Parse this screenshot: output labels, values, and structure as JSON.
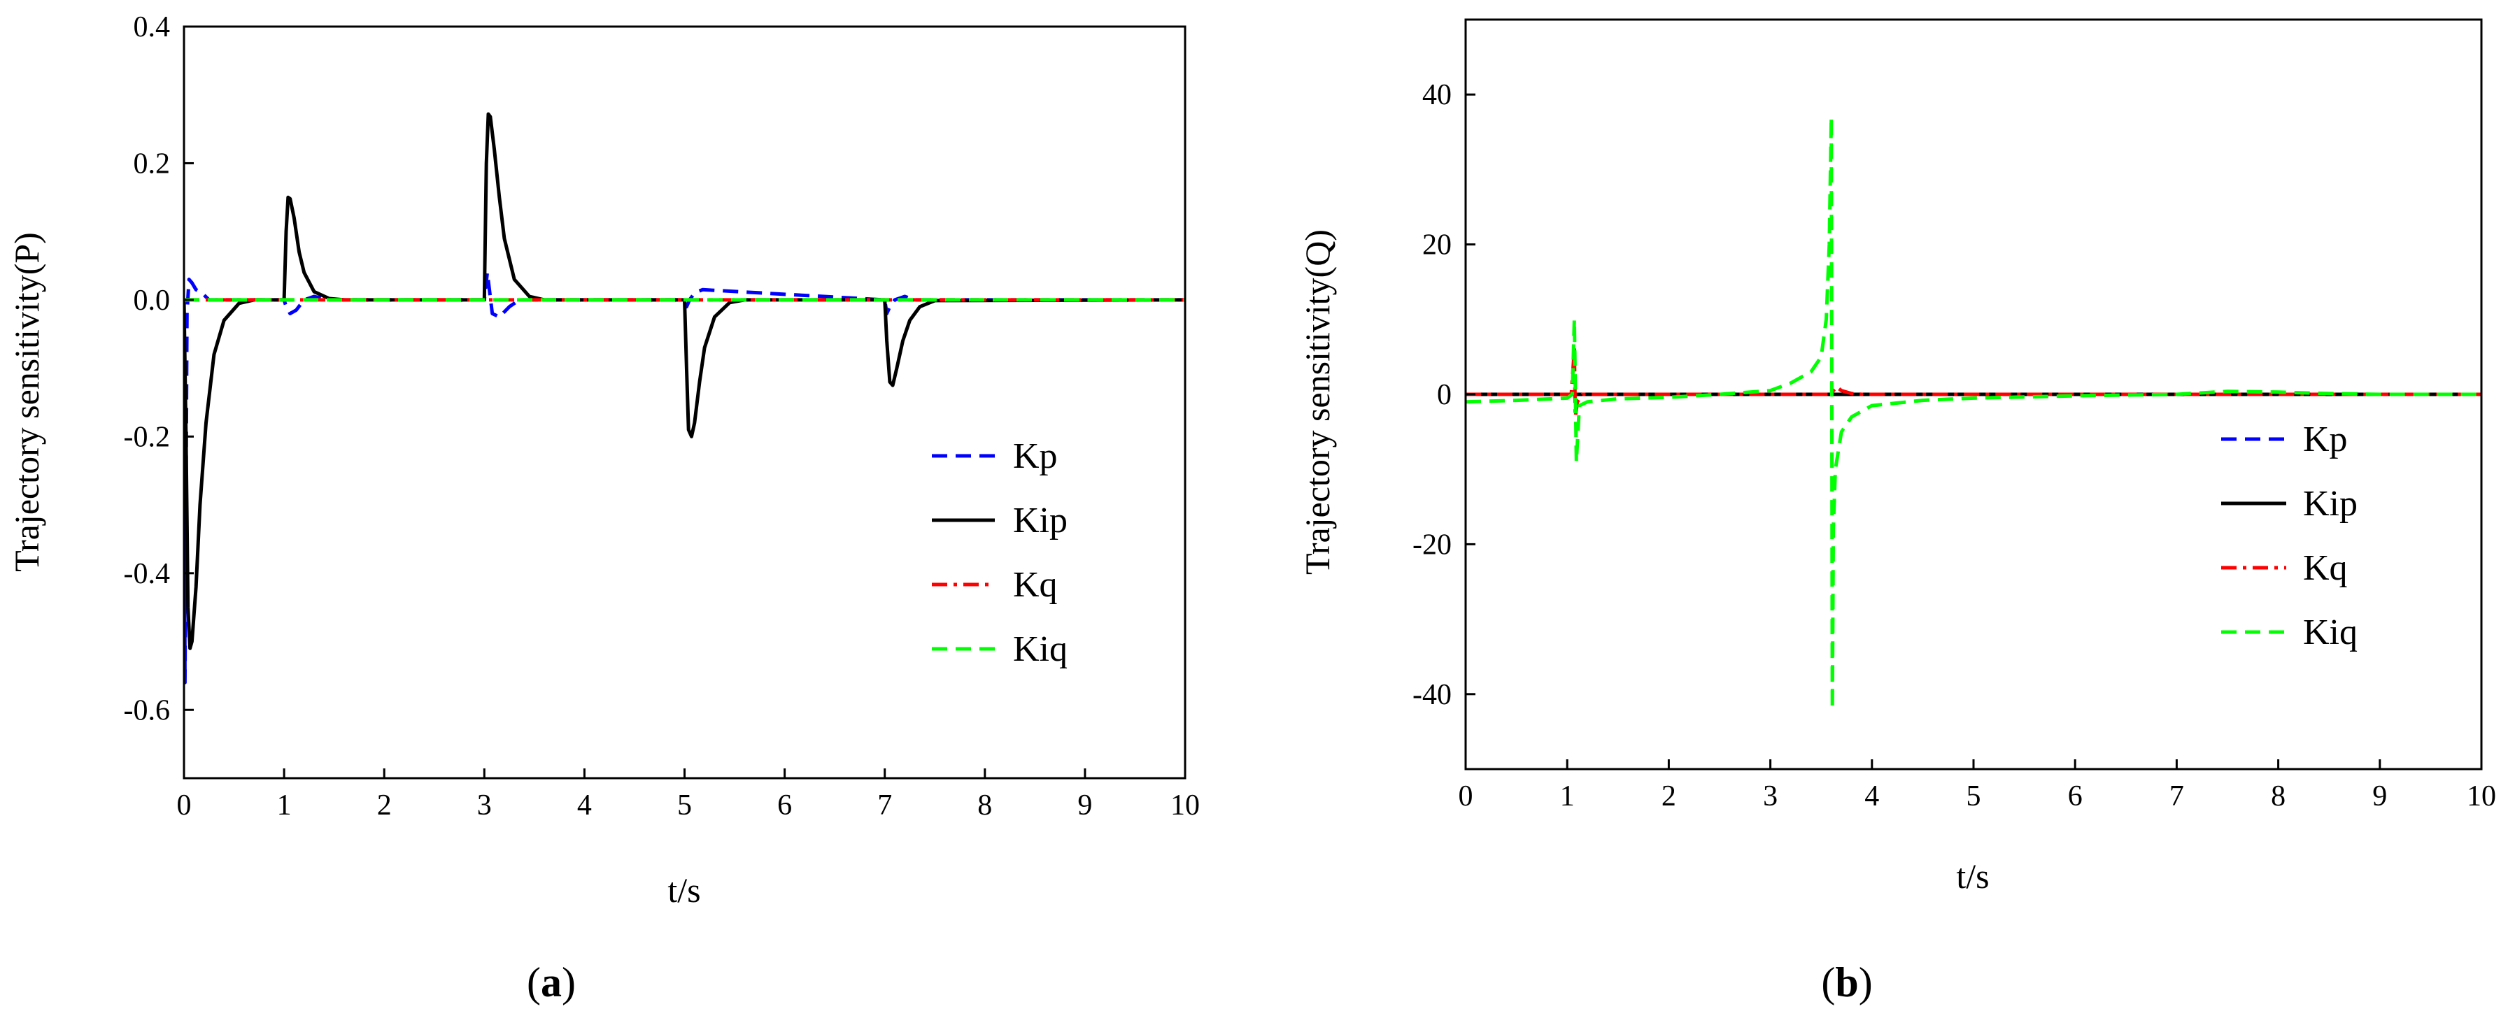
{
  "chart_data": [
    {
      "type": "line",
      "panel": "a",
      "caption_open": "(",
      "caption_letter": "a",
      "caption_close": ")",
      "xlabel": "t/s",
      "ylabel": "Trajectory sensitivity(P)",
      "xlim": [
        0,
        10
      ],
      "ylim": [
        -0.7,
        0.4
      ],
      "xticks": [
        "0",
        "1",
        "2",
        "3",
        "4",
        "5",
        "6",
        "7",
        "8",
        "9",
        "10"
      ],
      "yticks": [
        "-0.6",
        "-0.4",
        "-0.2",
        "0.0",
        "0.2",
        "0.4"
      ],
      "ytick_values": [
        -0.6,
        -0.4,
        -0.2,
        0.0,
        0.2,
        0.4
      ],
      "legend_position": "center-right",
      "series": [
        {
          "name": "Kp",
          "color": "#0000ff",
          "style": "dashed",
          "x": [
            0,
            0.01,
            0.03,
            0.05,
            0.08,
            0.12,
            0.18,
            0.25,
            0.35,
            1.0,
            1.02,
            1.06,
            1.12,
            1.2,
            1.3,
            1.45,
            3.0,
            3.03,
            3.08,
            3.15,
            3.25,
            3.35,
            3.5,
            5.0,
            5.02,
            5.05,
            5.1,
            5.18,
            7.0,
            7.02,
            7.05,
            7.1,
            7.2,
            7.3,
            10
          ],
          "values": [
            0,
            -0.56,
            -0.02,
            0.03,
            0.025,
            0.015,
            0.01,
            0.0,
            0.0,
            0.0,
            -0.01,
            -0.02,
            -0.015,
            0.0,
            0.005,
            0.0,
            0.0,
            0.04,
            -0.02,
            -0.025,
            -0.01,
            0.0,
            0.0,
            0.0,
            -0.01,
            0.0,
            0.01,
            0.015,
            0.0,
            -0.02,
            -0.01,
            0.0,
            0.005,
            0.0,
            0.0
          ]
        },
        {
          "name": "Kip",
          "color": "#000000",
          "style": "solid",
          "x": [
            0,
            0.02,
            0.04,
            0.06,
            0.08,
            0.12,
            0.16,
            0.22,
            0.3,
            0.4,
            0.55,
            0.7,
            1.0,
            1.02,
            1.04,
            1.06,
            1.1,
            1.15,
            1.2,
            1.3,
            1.45,
            1.6,
            3.0,
            3.02,
            3.04,
            3.06,
            3.1,
            3.15,
            3.2,
            3.3,
            3.45,
            3.6,
            5.0,
            5.02,
            5.04,
            5.07,
            5.1,
            5.15,
            5.2,
            5.3,
            5.45,
            5.6,
            7.0,
            7.02,
            7.05,
            7.08,
            7.12,
            7.18,
            7.25,
            7.35,
            7.5,
            10
          ],
          "values": [
            0,
            -0.2,
            -0.45,
            -0.51,
            -0.5,
            -0.42,
            -0.3,
            -0.18,
            -0.08,
            -0.03,
            -0.005,
            0,
            0,
            0.1,
            0.15,
            0.148,
            0.12,
            0.07,
            0.04,
            0.012,
            0.002,
            0,
            0,
            0.2,
            0.272,
            0.268,
            0.22,
            0.15,
            0.09,
            0.03,
            0.005,
            0,
            0,
            -0.1,
            -0.19,
            -0.2,
            -0.18,
            -0.12,
            -0.07,
            -0.025,
            -0.004,
            0,
            0,
            -0.06,
            -0.12,
            -0.125,
            -0.1,
            -0.06,
            -0.03,
            -0.01,
            -0.001,
            0
          ]
        },
        {
          "name": "Kq",
          "color": "#ff0000",
          "style": "dashdot",
          "x": [
            0,
            10
          ],
          "values": [
            0,
            0
          ]
        },
        {
          "name": "Kiq",
          "color": "#00ff00",
          "style": "dashed",
          "x": [
            0,
            10
          ],
          "values": [
            0,
            0
          ]
        }
      ]
    },
    {
      "type": "line",
      "panel": "b",
      "caption_open": "(",
      "caption_letter": "b",
      "caption_close": ")",
      "xlabel": "t/s",
      "ylabel": "Trajectory sensitivity(Q)",
      "xlim": [
        0,
        10
      ],
      "ylim": [
        -50,
        50
      ],
      "xticks": [
        "0",
        "1",
        "2",
        "3",
        "4",
        "5",
        "6",
        "7",
        "8",
        "9",
        "10"
      ],
      "yticks": [
        "-40",
        "-20",
        "0",
        "20",
        "40"
      ],
      "ytick_values": [
        -40,
        -20,
        0,
        20,
        40
      ],
      "legend_position": "center-right",
      "series": [
        {
          "name": "Kp",
          "color": "#0000ff",
          "style": "dashed",
          "x": [
            0,
            10
          ],
          "values": [
            0,
            0
          ]
        },
        {
          "name": "Kip",
          "color": "#000000",
          "style": "solid",
          "x": [
            0,
            10
          ],
          "values": [
            0,
            0
          ]
        },
        {
          "name": "Kq",
          "color": "#ff0000",
          "style": "dashdot",
          "x": [
            0,
            1.04,
            1.07,
            1.08,
            1.1,
            1.15,
            1.2,
            3.6,
            3.62,
            3.65,
            3.7,
            3.8,
            3.9,
            10
          ],
          "values": [
            0,
            0,
            6,
            -3,
            -1,
            0,
            0,
            0,
            0.5,
            1,
            0.5,
            0.1,
            0,
            0
          ]
        },
        {
          "name": "Kiq",
          "color": "#00ff00",
          "style": "dashed",
          "x": [
            0,
            0.5,
            1.0,
            1.05,
            1.07,
            1.09,
            1.12,
            1.2,
            1.5,
            2.0,
            2.5,
            3.0,
            3.2,
            3.4,
            3.5,
            3.55,
            3.58,
            3.6,
            3.61,
            3.62,
            3.64,
            3.7,
            3.8,
            4.0,
            4.5,
            5.0,
            6.0,
            7.0,
            7.5,
            8.0,
            8.5,
            9.0,
            10
          ],
          "values": [
            -1,
            -0.8,
            -0.5,
            0,
            10,
            -9,
            -1.5,
            -1,
            -0.6,
            -0.4,
            0,
            0.5,
            1.5,
            3,
            5,
            10,
            20,
            37,
            -42,
            -18,
            -10,
            -5,
            -3,
            -1.5,
            -0.8,
            -0.5,
            -0.2,
            0,
            0.4,
            0.3,
            0.1,
            0,
            0
          ]
        }
      ]
    }
  ]
}
